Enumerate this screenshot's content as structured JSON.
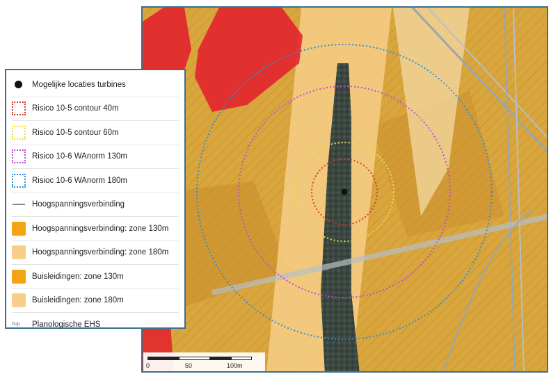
{
  "map": {
    "colors": {
      "zone_130m": "#f2a413",
      "zone_180m": "#f8cf8a",
      "residential_red": "#e2202d",
      "forest_strip": "#34443e",
      "risk_40m": "#d63a2f",
      "risk_60m": "#e8e04a",
      "risk_130m": "#c24bd0",
      "risk_180m": "#2d8fd6",
      "turbine": "#111111",
      "frame_border": "#3a6f8f"
    }
  },
  "legend": {
    "items": [
      {
        "label": "Mogelijke locaties turbines",
        "icon": "turbine-dot-icon"
      },
      {
        "label": "Risico 10-5 contour 40m",
        "icon": "red-dotted-square-icon",
        "color": "#d63a2f"
      },
      {
        "label": "Risico 10-5 contour 60m",
        "icon": "yellow-dotted-square-icon",
        "color": "#e8e04a"
      },
      {
        "label": "Risico 10-6 WAnorm 130m",
        "icon": "purple-dotted-square-icon",
        "color": "#c24bd0"
      },
      {
        "label": "Risioc 10-6 WAnorm 180m",
        "icon": "blue-dotted-square-icon",
        "color": "#2d8fd6"
      },
      {
        "label": "Hoogspanningsverbinding",
        "icon": "grey-line-icon"
      },
      {
        "label": "Hoogspanningsverbinding: zone 130m",
        "icon": "orange-square-icon",
        "color": "#f2a413"
      },
      {
        "label": "Hoogspanningsverbinding: zone 180m",
        "icon": "light-orange-square-icon",
        "color": "#f8cf8a"
      },
      {
        "label": "Buisleidingen: zone 130m",
        "icon": "orange-square-icon",
        "color": "#f2a413"
      },
      {
        "label": "Buisleidingen: zone 180m",
        "icon": "light-orange-square-icon",
        "color": "#f8cf8a"
      },
      {
        "label": "Planologische EHS",
        "icon": "ehs-hatch-icon",
        "swatch_text": "hop"
      }
    ]
  },
  "scalebar": {
    "labels": [
      "0",
      "50",
      "100m"
    ]
  }
}
